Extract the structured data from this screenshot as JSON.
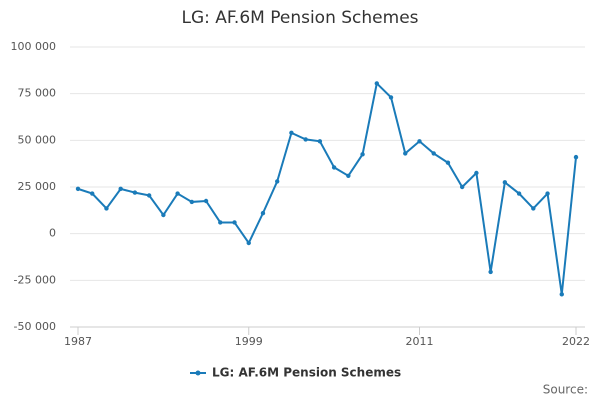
{
  "chart_data": {
    "type": "line",
    "title": "LG: AF.6M Pension Schemes",
    "x": [
      1987,
      1988,
      1989,
      1990,
      1991,
      1992,
      1993,
      1994,
      1995,
      1996,
      1997,
      1998,
      1999,
      2000,
      2001,
      2002,
      2003,
      2004,
      2005,
      2006,
      2007,
      2008,
      2009,
      2010,
      2011,
      2012,
      2013,
      2014,
      2015,
      2016,
      2017,
      2018,
      2019,
      2020,
      2021,
      2022
    ],
    "series": [
      {
        "name": "LG: AF.6M Pension Schemes",
        "color": "#1a7bb9",
        "values": [
          24000,
          21500,
          13500,
          24000,
          22000,
          20500,
          10000,
          21500,
          17000,
          17500,
          6000,
          6000,
          -5000,
          11000,
          28000,
          54000,
          50500,
          49500,
          35500,
          31000,
          42500,
          80500,
          73000,
          43000,
          49500,
          43000,
          38000,
          25000,
          32500,
          -20500,
          27500,
          21500,
          13500,
          21500,
          -32500,
          41000
        ]
      }
    ],
    "xlim": [
      1987,
      2022
    ],
    "xticks": [
      1987,
      1999,
      2011,
      2022
    ],
    "ylim": [
      -50000,
      100000
    ],
    "yticks": [
      {
        "value": -50000,
        "label": "-50 000"
      },
      {
        "value": -25000,
        "label": "-25 000"
      },
      0,
      {
        "value": 25000,
        "label": "25 000"
      },
      {
        "value": 50000,
        "label": "50 000"
      },
      {
        "value": 75000,
        "label": "75 000"
      },
      {
        "value": 100000,
        "label": "100 000"
      }
    ],
    "grid": true,
    "legend": "bottom",
    "source": "Source:"
  }
}
